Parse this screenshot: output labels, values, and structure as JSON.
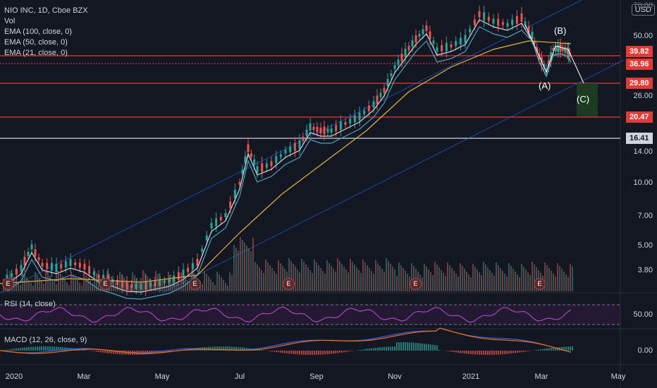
{
  "legend": {
    "symbol": "NIO INC, 1D, Cboe BZX",
    "vol": "Vol",
    "ema100": "EMA (100, close, 0)",
    "ema50": "EMA (50, close, 0)",
    "ema21": "EMA (21, close, 0)"
  },
  "currency": "USD",
  "price_axis": [
    "70.00",
    "50.00",
    "26.00",
    "14.00",
    "10.00",
    "7.00",
    "5.00",
    "3.80"
  ],
  "price_badges": [
    {
      "label": "39.82",
      "color": "#e53935"
    },
    {
      "label": "36.96",
      "color": "#e53935"
    },
    {
      "label": "29.80",
      "color": "#e53935"
    },
    {
      "label": "20.47",
      "color": "#e53935"
    },
    {
      "label": "16.41",
      "color": "#d1d4dc"
    }
  ],
  "wave_labels": [
    "(A)",
    "(B)",
    "(C)"
  ],
  "earnings_marker": "E",
  "rsi": {
    "label": "RSI (14, close)",
    "axis": "50.00"
  },
  "macd": {
    "label": "MACD (12, 26, close, 9)",
    "axis": "0.00"
  },
  "time_axis": [
    "2020",
    "Mar",
    "May",
    "Jul",
    "Sep",
    "Nov",
    "2021",
    "Mar",
    "May"
  ],
  "colors": {
    "up": "#26a69a",
    "down": "#ef5350",
    "background": "#131722",
    "ema100": "#e8b23a",
    "ema50": "#4aa3c0",
    "ema21": "#d1d4dc",
    "rsi": "#9c27b0"
  }
}
